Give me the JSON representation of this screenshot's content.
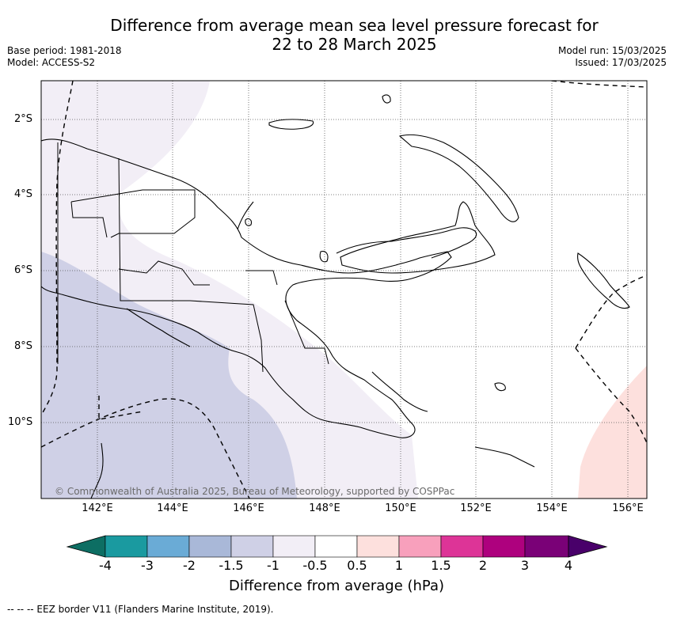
{
  "title": {
    "line1": "Difference from average mean sea level pressure forecast for",
    "line2": "22 to 28 March 2025"
  },
  "meta_left": {
    "base_period": "Base period: 1981-2018",
    "model": "Model: ACCESS-S2"
  },
  "meta_right": {
    "model_run": "Model run: 15/03/2025",
    "issued": "Issued: 17/03/2025"
  },
  "axes": {
    "lat_labels": [
      "2°S",
      "4°S",
      "6°S",
      "8°S",
      "10°S"
    ],
    "lon_labels": [
      "142°E",
      "144°E",
      "146°E",
      "148°E",
      "150°E",
      "152°E",
      "154°E",
      "156°E"
    ]
  },
  "copyright": "© Commonwealth of Australia 2025, Bureau of Meteorology, supported by COSPPac",
  "colorbar": {
    "title": "Difference from average (hPa)",
    "tick_labels": [
      "-4",
      "-3",
      "-2",
      "-1.5",
      "-1",
      "-0.5",
      "0.5",
      "1",
      "1.5",
      "2",
      "3",
      "4"
    ],
    "colors": [
      "#0d6e63",
      "#1a9aa0",
      "#6aabd6",
      "#a9b8d8",
      "#cfd0e6",
      "#f2eef6",
      "#ffffff",
      "#fde0dd",
      "#f8a0bc",
      "#dd3497",
      "#ae017e",
      "#7a0177",
      "#49006a"
    ]
  },
  "footer": "--  --  -- EEZ border V11 (Flanders Marine Institute, 2019)."
}
